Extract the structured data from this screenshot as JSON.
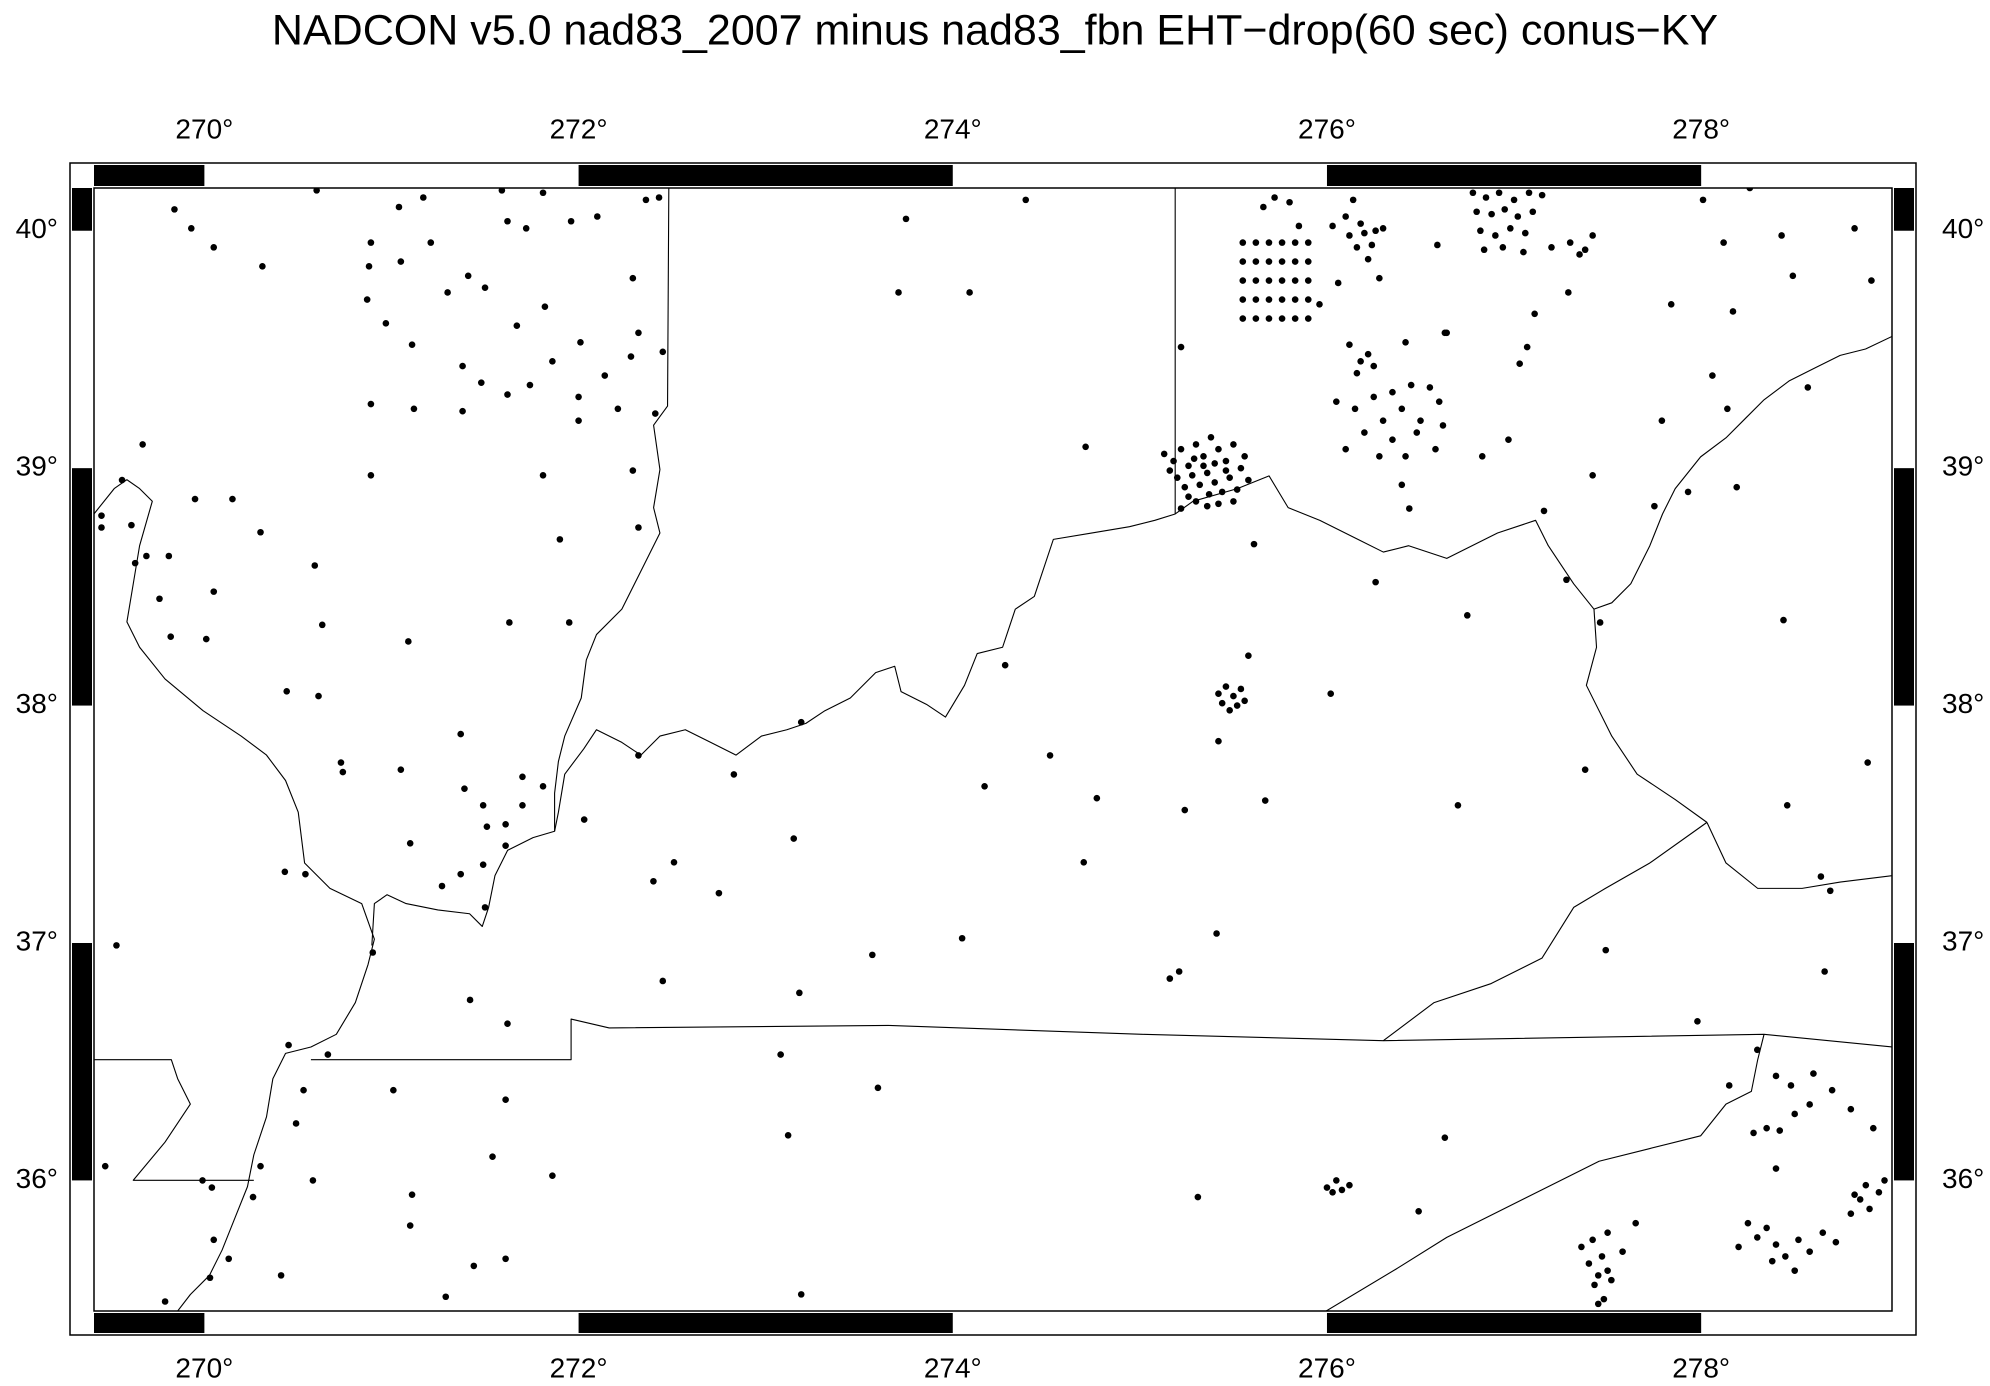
{
  "chart_data": {
    "type": "scatter",
    "title": "NADCON v5.0 nad83_2007 minus nad83_fbn EHT−drop(60 sec) conus−KY",
    "xlim": [
      269.41,
      279.02
    ],
    "ylim": [
      35.45,
      40.18
    ],
    "xticks": [
      {
        "value": 270,
        "label": "270°"
      },
      {
        "value": 272,
        "label": "272°"
      },
      {
        "value": 274,
        "label": "274°"
      },
      {
        "value": 276,
        "label": "276°"
      },
      {
        "value": 278,
        "label": "278°"
      }
    ],
    "yticks": [
      {
        "value": 36,
        "label": "36°"
      },
      {
        "value": 37,
        "label": "37°"
      },
      {
        "value": 38,
        "label": "38°"
      },
      {
        "value": 39,
        "label": "39°"
      },
      {
        "value": 40,
        "label": "40°"
      }
    ],
    "color": "#000000",
    "x": [
      269.84,
      269.93,
      270.05,
      270.31,
      270.6,
      270.89,
      270.88,
      271.04,
      271.05,
      271.17,
      271.21,
      270.87,
      270.97,
      271.11,
      271.3,
      271.41,
      271.5,
      271.59,
      271.62,
      271.72,
      271.81,
      271.96,
      272.1,
      272.29,
      272.43,
      272.36,
      271.82,
      271.67,
      272.01,
      272.45,
      272.32,
      272.28,
      271.38,
      271.48,
      271.62,
      271.74,
      271.86,
      272.0,
      272.14,
      272.21,
      272.0,
      270.89,
      271.12,
      271.38,
      272.41,
      269.67,
      269.56,
      269.95,
      270.15,
      269.45,
      269.45,
      269.61,
      270.3,
      270.89,
      271.81,
      272.29,
      272.32,
      271.9,
      269.69,
      269.63,
      269.81,
      270.59,
      270.05,
      269.76,
      269.82,
      270.01,
      270.63,
      271.09,
      271.63,
      271.95,
      270.44,
      270.61,
      271.37,
      270.73,
      270.74,
      271.05,
      271.39,
      271.49,
      271.7,
      271.81,
      271.7,
      271.61,
      271.51,
      271.61,
      271.1,
      271.37,
      271.49,
      271.27,
      271.5,
      270.43,
      270.54,
      272.03,
      272.32,
      272.83,
      273.19,
      273.15,
      272.4,
      272.51,
      272.75,
      269.53,
      270.9,
      271.42,
      271.62,
      270.45,
      270.66,
      270.53,
      270.49,
      271.01,
      271.61,
      270.58,
      270.3,
      269.47,
      269.99,
      270.04,
      270.26,
      270.05,
      270.13,
      270.03,
      270.41,
      269.79,
      271.11,
      271.1,
      271.44,
      271.61,
      271.54,
      271.86,
      271.29,
      272.45,
      273.18,
      273.57,
      274.05,
      273.08,
      273.6,
      273.12,
      273.19,
      274.39,
      273.75,
      273.71,
      274.09,
      274.71,
      275.22,
      274.28,
      274.52,
      274.17,
      274.77,
      275.24,
      274.7,
      275.41,
      275.21,
      275.16,
      275.31,
      275.58,
      275.42,
      275.67,
      275.61,
      276.02,
      276.26,
      276.7,
      276.75,
      276.44,
      276.63,
      276.49,
      277.07,
      277.03,
      276.63,
      277.16,
      277.28,
      277.38,
      277.49,
      277.46,
      277.98,
      278.46,
      278.44,
      278.66,
      278.89,
      278.64,
      278.69,
      278.19,
      277.93,
      278.57,
      278.49,
      278.82,
      278.91,
      278.26,
      278.01,
      278.12,
      278.43,
      278.17,
      278.14,
      277.84,
      277.79,
      277.42,
      277.75,
      278.06,
      277.11,
      277.29,
      276.83,
      276.97,
      276.64,
      276.59,
      276.42,
      276.03,
      275.96,
      275.13,
      275.18,
      275.22,
      275.26,
      275.3,
      275.34,
      275.38,
      275.42,
      275.46,
      275.5,
      275.54,
      275.58,
      275.2,
      275.24,
      275.28,
      275.32,
      275.36,
      275.4,
      275.44,
      275.48,
      275.52,
      275.3,
      275.36,
      275.42,
      275.26,
      275.16,
      275.46,
      275.34,
      275.4,
      275.5,
      275.22,
      275.56,
      275.37,
      275.29,
      275.55,
      275.62,
      275.69,
      275.76,
      275.83,
      275.9,
      275.55,
      275.62,
      275.69,
      275.76,
      275.83,
      275.9,
      275.55,
      275.62,
      275.69,
      275.76,
      275.83,
      275.9,
      275.55,
      275.62,
      275.69,
      275.76,
      275.83,
      275.9,
      275.55,
      275.62,
      275.69,
      275.76,
      275.83,
      275.9,
      275.72,
      275.8,
      275.66,
      275.85,
      276.12,
      276.16,
      276.2,
      276.24,
      276.18,
      276.26,
      276.1,
      276.22,
      276.3,
      276.14,
      276.06,
      276.28,
      276.78,
      276.85,
      276.92,
      277.0,
      277.08,
      277.15,
      276.8,
      276.88,
      276.95,
      277.02,
      277.1,
      276.82,
      276.9,
      276.98,
      277.06,
      276.84,
      276.94,
      277.05,
      277.2,
      277.3,
      277.38,
      277.42,
      277.35,
      276.12,
      276.18,
      276.22,
      276.16,
      276.25,
      276.05,
      276.15,
      276.25,
      276.35,
      276.45,
      276.55,
      276.6,
      276.4,
      276.3,
      276.5,
      276.2,
      276.35,
      276.48,
      276.62,
      276.1,
      276.28,
      276.42,
      276.58,
      276.4,
      275.42,
      275.46,
      275.5,
      275.54,
      275.44,
      275.52,
      275.48,
      275.56,
      276.0,
      276.05,
      276.08,
      276.12,
      276.03,
      277.4,
      277.45,
      277.5,
      277.47,
      277.43,
      277.52,
      277.48,
      277.42,
      277.5,
      277.36,
      277.58,
      277.65,
      277.45,
      278.25,
      278.3,
      278.35,
      278.4,
      278.2,
      278.45,
      278.52,
      278.58,
      278.65,
      278.72,
      278.8,
      278.85,
      278.9,
      278.95,
      278.88,
      278.82,
      278.5,
      278.38,
      278.28,
      278.35,
      278.42,
      278.5,
      278.58,
      278.48,
      278.4,
      278.6,
      278.7,
      278.8,
      278.92,
      278.3,
      278.15,
      278.4,
      278.98
    ],
    "values": [
      40.09,
      40.01,
      39.93,
      39.85,
      40.17,
      39.95,
      39.85,
      40.1,
      39.87,
      40.14,
      39.95,
      39.71,
      39.61,
      39.52,
      39.74,
      39.81,
      39.76,
      40.17,
      40.04,
      40.01,
      40.16,
      40.04,
      40.06,
      39.8,
      40.14,
      40.13,
      39.68,
      39.6,
      39.53,
      39.49,
      39.57,
      39.47,
      39.43,
      39.36,
      39.31,
      39.35,
      39.45,
      39.3,
      39.39,
      39.25,
      39.2,
      39.27,
      39.25,
      39.24,
      39.23,
      39.1,
      38.95,
      38.87,
      38.87,
      38.8,
      38.75,
      38.76,
      38.73,
      38.97,
      38.97,
      38.99,
      38.75,
      38.7,
      38.63,
      38.6,
      38.63,
      38.59,
      38.48,
      38.45,
      38.29,
      38.28,
      38.34,
      38.27,
      38.35,
      38.35,
      38.06,
      38.04,
      37.88,
      37.76,
      37.72,
      37.73,
      37.65,
      37.58,
      37.7,
      37.66,
      37.58,
      37.5,
      37.49,
      37.41,
      37.42,
      37.29,
      37.33,
      37.24,
      37.15,
      37.3,
      37.29,
      37.52,
      37.79,
      37.71,
      37.93,
      37.44,
      37.26,
      37.34,
      37.21,
      36.99,
      36.96,
      36.76,
      36.66,
      36.57,
      36.53,
      36.38,
      36.24,
      36.38,
      36.34,
      36.0,
      36.06,
      36.06,
      36.0,
      35.97,
      35.93,
      35.75,
      35.67,
      35.59,
      35.6,
      35.49,
      35.94,
      35.81,
      35.64,
      35.67,
      36.1,
      36.02,
      35.51,
      36.84,
      36.79,
      36.95,
      37.02,
      36.53,
      36.39,
      36.19,
      35.52,
      40.13,
      40.05,
      39.74,
      39.74,
      39.09,
      39.51,
      38.17,
      37.79,
      37.66,
      37.61,
      37.56,
      37.34,
      37.04,
      36.88,
      36.85,
      35.93,
      38.21,
      37.85,
      37.6,
      38.68,
      38.05,
      38.52,
      37.58,
      38.38,
      38.83,
      36.18,
      35.87,
      39.51,
      39.44,
      39.57,
      38.82,
      38.53,
      37.73,
      36.97,
      38.35,
      36.67,
      37.58,
      38.36,
      36.88,
      37.76,
      37.28,
      37.22,
      38.92,
      38.9,
      39.34,
      39.81,
      40.01,
      39.79,
      40.18,
      40.13,
      39.95,
      39.98,
      39.66,
      39.25,
      39.69,
      39.2,
      38.97,
      38.84,
      39.39,
      39.65,
      39.74,
      39.05,
      39.12,
      39.57,
      39.94,
      39.53,
      40.02,
      39.69,
      39.06,
      39.03,
      39.08,
      39.01,
      39.1,
      39.05,
      39.13,
      39.08,
      39.03,
      39.1,
      39.0,
      38.95,
      38.96,
      38.92,
      38.97,
      38.93,
      38.98,
      38.94,
      38.9,
      38.96,
      38.91,
      38.86,
      38.84,
      38.85,
      38.88,
      38.99,
      38.99,
      39.01,
      39.02,
      38.86,
      38.83,
      39.05,
      38.89,
      39.04,
      39.95,
      39.95,
      39.95,
      39.95,
      39.95,
      39.95,
      39.87,
      39.87,
      39.87,
      39.87,
      39.87,
      39.87,
      39.79,
      39.79,
      39.79,
      39.79,
      39.79,
      39.79,
      39.71,
      39.71,
      39.71,
      39.71,
      39.71,
      39.71,
      39.63,
      39.63,
      39.63,
      39.63,
      39.63,
      39.63,
      40.14,
      40.12,
      40.1,
      40.02,
      39.98,
      39.93,
      39.99,
      39.94,
      40.03,
      40.0,
      40.06,
      39.88,
      40.01,
      40.13,
      39.78,
      39.8,
      40.16,
      40.14,
      40.16,
      40.13,
      40.16,
      40.15,
      40.08,
      40.07,
      40.09,
      40.06,
      40.08,
      40.0,
      39.98,
      40.01,
      39.99,
      39.92,
      39.93,
      39.91,
      39.93,
      39.95,
      39.92,
      39.98,
      39.9,
      39.52,
      39.45,
      39.48,
      39.4,
      39.43,
      39.28,
      39.25,
      39.3,
      39.32,
      39.35,
      39.34,
      39.28,
      39.25,
      39.2,
      39.2,
      39.15,
      39.12,
      39.15,
      39.18,
      39.08,
      39.05,
      39.05,
      39.08,
      38.93,
      38.05,
      38.08,
      38.04,
      38.07,
      38.01,
      38.0,
      37.98,
      38.02,
      35.97,
      36.0,
      35.96,
      35.98,
      35.95,
      35.65,
      35.6,
      35.62,
      35.68,
      35.56,
      35.58,
      35.5,
      35.75,
      35.78,
      35.72,
      35.7,
      35.82,
      35.48,
      35.82,
      35.76,
      35.8,
      35.73,
      35.72,
      35.68,
      35.75,
      35.7,
      35.78,
      35.74,
      35.86,
      35.92,
      35.88,
      35.95,
      35.98,
      35.94,
      35.62,
      35.66,
      36.2,
      36.22,
      36.21,
      36.28,
      36.32,
      36.4,
      36.44,
      36.45,
      36.38,
      36.3,
      36.22,
      36.55,
      36.4,
      36.05,
      36.0
    ]
  }
}
